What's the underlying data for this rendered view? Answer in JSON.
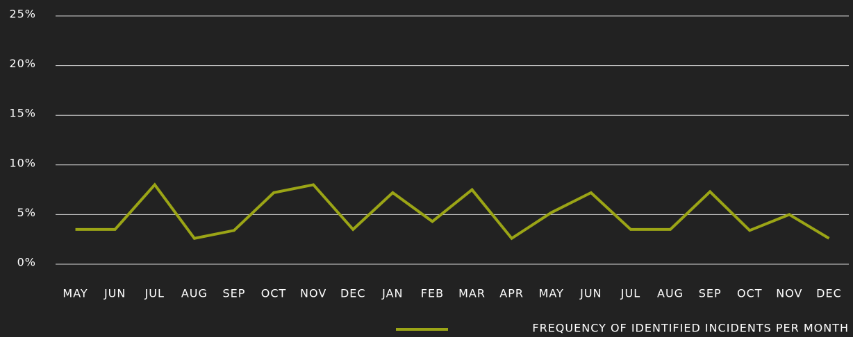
{
  "chart_data": {
    "type": "line",
    "categories": [
      "MAY",
      "JUN",
      "JUL",
      "AUG",
      "SEP",
      "OCT",
      "NOV",
      "DEC",
      "JAN",
      "FEB",
      "MAR",
      "APR",
      "MAY",
      "JUN",
      "JUL",
      "AUG",
      "SEP",
      "OCT",
      "NOV",
      "DEC"
    ],
    "series": [
      {
        "name": "FREQUENCY OF IDENTIFIED INCIDENTS PER MONTH",
        "color": "#9ba516",
        "values": [
          3.5,
          3.5,
          8,
          2.6,
          3.4,
          7.2,
          8,
          3.5,
          7.2,
          4.3,
          7.5,
          2.6,
          5.2,
          7.2,
          3.5,
          3.5,
          7.3,
          3.4,
          5.0,
          2.6
        ]
      }
    ],
    "ylim": [
      0,
      25
    ],
    "yticks": [
      {
        "value": 0,
        "label": "0%"
      },
      {
        "value": 5,
        "label": "5%"
      },
      {
        "value": 10,
        "label": "10%"
      },
      {
        "value": 15,
        "label": "15%"
      },
      {
        "value": 20,
        "label": "20%"
      },
      {
        "value": 25,
        "label": "25%"
      }
    ],
    "grid": true,
    "legend": "bottom-right"
  }
}
